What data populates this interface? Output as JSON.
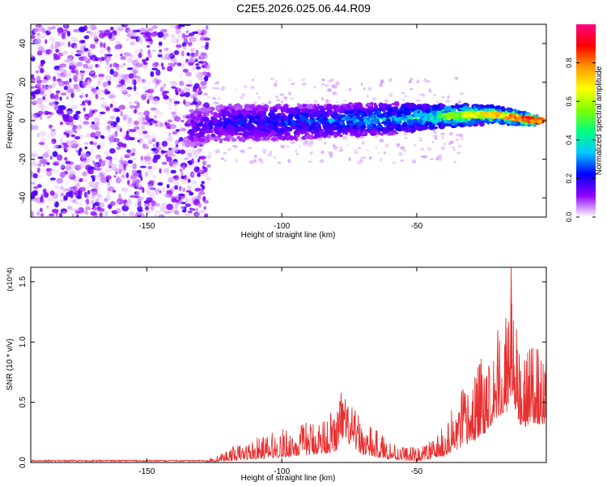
{
  "title": "C2E5.2026.025.06.44.R09",
  "chart_data": [
    {
      "type": "heatmap",
      "panel": "spectrogram",
      "xlabel": "Height of straight line (km)",
      "ylabel": "Frequency (Hz)",
      "xlim": [
        -193,
        -2
      ],
      "ylim": [
        -50,
        50
      ],
      "xticks": [
        -150,
        -100,
        -50
      ],
      "xtick_labels": [
        "-150",
        "-100",
        "-50"
      ],
      "yticks": [
        -40,
        -20,
        0,
        20,
        40
      ],
      "ytick_labels": [
        "-40",
        "-20",
        "0",
        "20",
        "40"
      ],
      "description_of_data": "Noise (scattered purple blobs) fills the full frequency band for heights below about -127 km. Above -127 km the signal is a band centred near 0 Hz that narrows and brightens toward the right.",
      "noise_region": {
        "x_from": -193,
        "x_to": -127,
        "y_from": -50,
        "y_to": 50,
        "amplitude_range": [
          0.02,
          0.18
        ]
      },
      "signal_band": {
        "x": [
          -135,
          -120,
          -100,
          -80,
          -60,
          -45,
          -30,
          -20,
          -10,
          -5
        ],
        "center_hz": [
          -4,
          -1,
          -1,
          0,
          1,
          2,
          3,
          3,
          1,
          0
        ],
        "halfwidth_hz": [
          9,
          9,
          9,
          8,
          8,
          6,
          5,
          4,
          3,
          2
        ],
        "peak_amplitude": [
          0.2,
          0.25,
          0.3,
          0.35,
          0.4,
          0.55,
          0.7,
          0.8,
          0.95,
          0.95
        ]
      },
      "colorbar": {
        "label": "Normalized spectral amplitude",
        "range": [
          0,
          1
        ],
        "ticks": [
          0.0,
          0.2,
          0.4,
          0.6,
          0.8
        ],
        "tick_labels": [
          "0.0",
          "0.2",
          "0.4",
          "0.6",
          "0.8"
        ],
        "colors": [
          "#ffffff",
          "#9000ff",
          "#0000ff",
          "#00c8ff",
          "#00ff80",
          "#80ff00",
          "#ffff00",
          "#ff9900",
          "#ff0000",
          "#ff0080"
        ]
      }
    },
    {
      "type": "line",
      "panel": "snr",
      "xlabel": "Height of straight line (km)",
      "ylabel": "SNR (10 * v/v)",
      "y_multiplier": "(x10^4)",
      "xlim": [
        -193,
        -2
      ],
      "ylim": [
        0,
        1.62
      ],
      "xticks": [
        -150,
        -100,
        -50
      ],
      "xtick_labels": [
        "-150",
        "-100",
        "-50"
      ],
      "yticks": [
        0.0,
        0.5,
        1.0,
        1.5
      ],
      "ytick_labels": [
        "0.0",
        "0.5",
        "1.0",
        "1.5"
      ],
      "color": "#e83030",
      "series": [
        {
          "name": "SNR",
          "x": [
            -193,
            -170,
            -150,
            -130,
            -125,
            -120,
            -110,
            -100,
            -90,
            -80,
            -78,
            -70,
            -60,
            -55,
            -50,
            -45,
            -40,
            -35,
            -30,
            -25,
            -20,
            -17,
            -15,
            -12,
            -10,
            -7,
            -5,
            -2
          ],
          "values": [
            0.01,
            0.01,
            0.01,
            0.01,
            0.02,
            0.04,
            0.08,
            0.12,
            0.18,
            0.25,
            0.58,
            0.18,
            0.08,
            0.05,
            0.03,
            0.08,
            0.15,
            0.3,
            0.45,
            0.7,
            1.1,
            1.2,
            1.62,
            0.9,
            0.85,
            0.95,
            0.9,
            0.92
          ],
          "envelope_high": [
            0.02,
            0.02,
            0.02,
            0.02,
            0.04,
            0.12,
            0.2,
            0.28,
            0.35,
            0.45,
            0.6,
            0.35,
            0.2,
            0.15,
            0.12,
            0.18,
            0.3,
            0.55,
            0.75,
            0.9,
            1.2,
            1.05,
            1.62,
            0.85,
            1.0,
            0.95,
            0.98,
            0.95
          ]
        }
      ]
    }
  ]
}
